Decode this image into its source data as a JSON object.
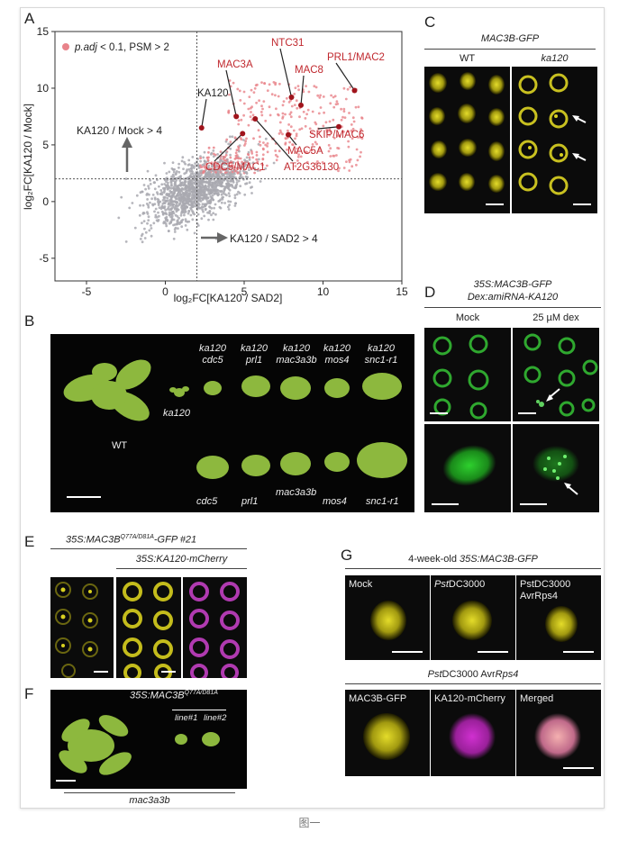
{
  "figure_caption": "图一",
  "panels": {
    "A": "A",
    "B": "B",
    "C": "C",
    "D": "D",
    "E": "E",
    "F": "F",
    "G": "G"
  },
  "A": {
    "legend": "p.adj < 0.1, PSM > 2",
    "annotations": [
      "KA120 / Mock > 4",
      "KA120 / SAD2 > 4"
    ],
    "red_labels": [
      "MAC3A",
      "NTC31",
      "MAC8",
      "PRL1/MAC2",
      "SKIP/MAC6",
      "MAC5A",
      "AT2G36130",
      "CDC5/MAC1"
    ],
    "black_labels": [
      "KA120"
    ],
    "xticks": [
      "-5",
      "0",
      "5",
      "10",
      "15"
    ],
    "yticks": [
      "15",
      "10",
      "5",
      "0",
      "-5"
    ],
    "colors": {
      "significant": "#e8838a",
      "nonsignificant": "#a9a9b0",
      "label_red": "#c0282e"
    }
  },
  "chart_data": {
    "type": "scatter",
    "xlabel": "log₂FC[KA120 / SAD2]",
    "ylabel": "log₂FC[KA120 / Mock]",
    "xlim": [
      -7,
      15
    ],
    "ylim": [
      -7,
      15
    ],
    "thresholds": {
      "x": 2,
      "y": 2
    },
    "highlighted": [
      {
        "label": "KA120",
        "x": 2.3,
        "y": 6.5
      },
      {
        "label": "MAC3A",
        "x": 4.5,
        "y": 7.5
      },
      {
        "label": "CDC5/MAC1",
        "x": 4.9,
        "y": 6.0
      },
      {
        "label": "NTC31",
        "x": 8.0,
        "y": 9.2
      },
      {
        "label": "MAC8",
        "x": 8.6,
        "y": 8.5
      },
      {
        "label": "PRL1/MAC2",
        "x": 12.0,
        "y": 9.8
      },
      {
        "label": "SKIP/MAC6",
        "x": 11.0,
        "y": 6.6
      },
      {
        "label": "MAC5A",
        "x": 7.8,
        "y": 5.9
      },
      {
        "label": "AT2G36130",
        "x": 5.7,
        "y": 7.3
      }
    ]
  },
  "B": {
    "wt": "WT",
    "ka120": "ka120",
    "top_genotypes": [
      {
        "l1": "ka120",
        "l2": "cdc5"
      },
      {
        "l1": "ka120",
        "l2": "prl1"
      },
      {
        "l1": "ka120",
        "l2": "mac3a3b"
      },
      {
        "l1": "ka120",
        "l2": "mos4"
      },
      {
        "l1": "ka120",
        "l2": "snc1-r1"
      }
    ],
    "bottom_genotypes": [
      "cdc5",
      "prl1",
      "mac3a3b",
      "mos4",
      "snc1-r1"
    ]
  },
  "C": {
    "title": "MAC3B-GFP",
    "wt": "WT",
    "mutant": "ka120"
  },
  "D": {
    "title1": "35S:MAC3B-GFP",
    "title2": "Dex:amiRNA-KA120",
    "mock": "Mock",
    "dex": "25 µM dex"
  },
  "E": {
    "title_pre": "35S:MAC3B",
    "title_sup": "Q77A/D81A",
    "title_post": "-GFP #21",
    "subtitle": "35S:KA120-mCherry"
  },
  "F": {
    "title_pre": "35S:MAC3B",
    "title_sup": "Q77A/D81A",
    "line1": "line#1",
    "line2": "line#2",
    "footer": "mac3a3b"
  },
  "G": {
    "title_pre": "4-week-old ",
    "title_it": "35S:MAC3B-GFP",
    "row1": [
      {
        "it": "",
        "rest": "Mock",
        "l2": ""
      },
      {
        "it": "Pst",
        "rest": "DC3000",
        "l2": ""
      },
      {
        "it": "",
        "rest": "PstDC3000",
        "l2": "AvrRps4"
      }
    ],
    "subtitle_it": "Pst",
    "subtitle_rest": "DC3000  Avr",
    "subtitle_it2": "Rps4",
    "row2": [
      "MAC3B-GFP",
      "KA120-mCherry",
      "Merged"
    ]
  }
}
